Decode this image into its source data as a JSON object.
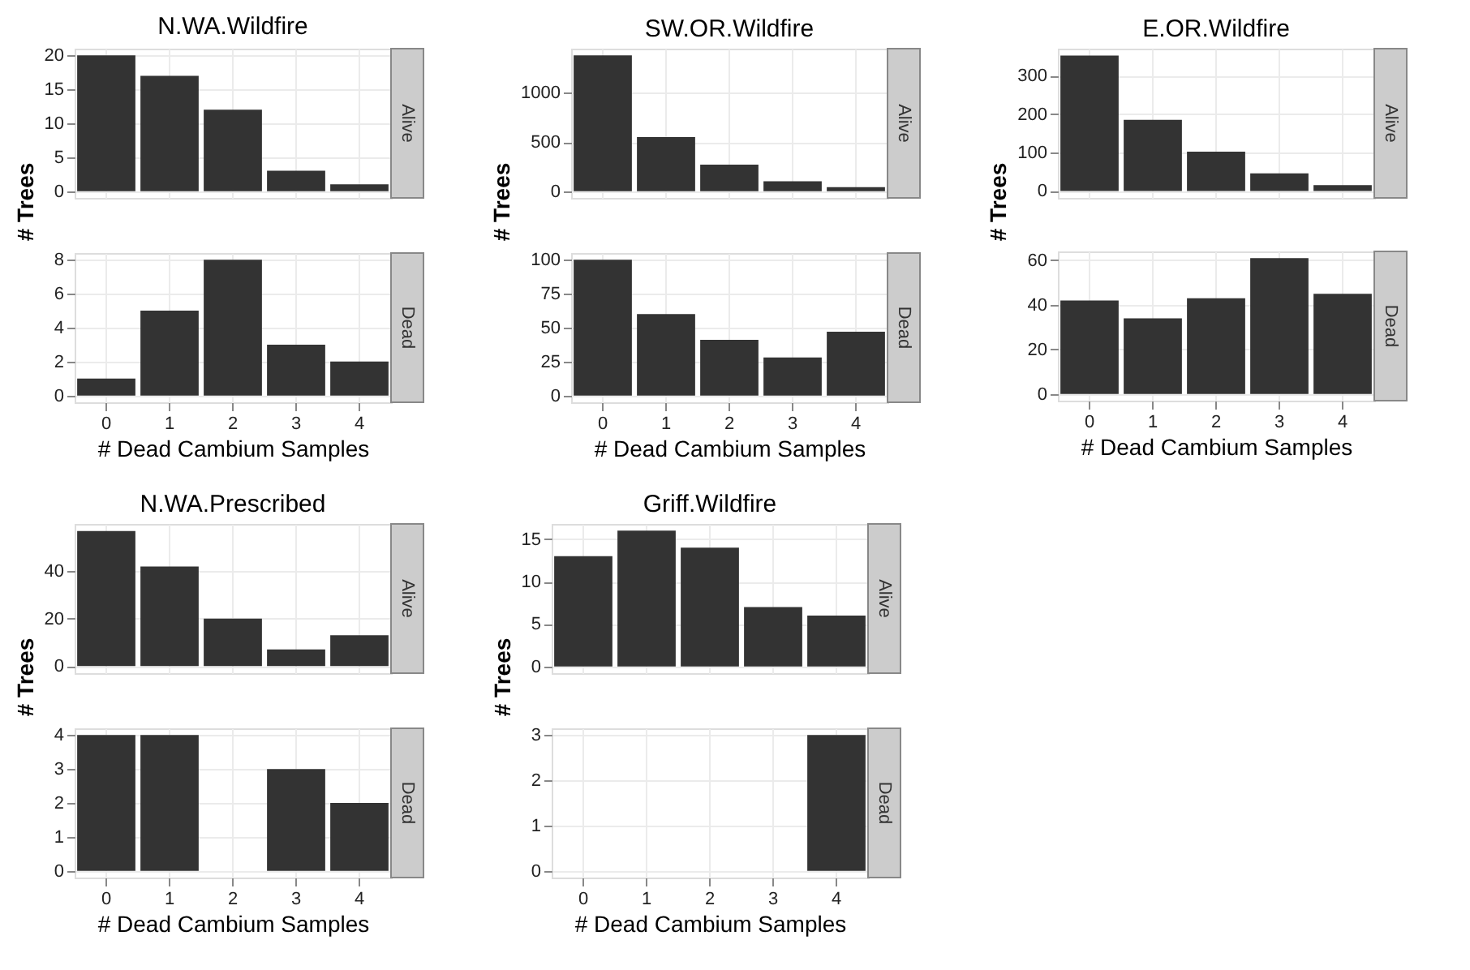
{
  "chart_data": [
    {
      "type": "bar",
      "title": "N.WA.Wildfire",
      "ylabel": "# Trees",
      "categories": [
        "0",
        "1",
        "2",
        "3",
        "4"
      ],
      "values": [
        20,
        17,
        12,
        3,
        1
      ],
      "color": "#333333",
      "ylim": [
        -1,
        21
      ],
      "yticks": [
        0,
        5,
        10,
        15,
        20
      ],
      "grid": true,
      "tick_labels": "y",
      "annotations": [
        "Alive"
      ]
    },
    {
      "type": "bar",
      "xlabel": "# Dead Cambium Samples",
      "categories": [
        "0",
        "1",
        "2",
        "3",
        "4"
      ],
      "values": [
        1,
        5,
        8,
        3,
        2
      ],
      "color": "#333333",
      "ylim": [
        -0.4,
        8.4
      ],
      "yticks": [
        0,
        2,
        4,
        6,
        8
      ],
      "grid": true,
      "annotations": [
        "Dead"
      ]
    },
    {
      "type": "bar",
      "title": "SW.OR.Wildfire",
      "ylabel": "# Trees",
      "categories": [
        "0",
        "1",
        "2",
        "3",
        "4"
      ],
      "values": [
        1380,
        550,
        270,
        100,
        40
      ],
      "color": "#333333",
      "ylim": [
        -69,
        1449
      ],
      "yticks": [
        0,
        500,
        1000
      ],
      "grid": true,
      "tick_labels": "y",
      "annotations": [
        "Alive"
      ]
    },
    {
      "type": "bar",
      "xlabel": "# Dead Cambium Samples",
      "categories": [
        "0",
        "1",
        "2",
        "3",
        "4"
      ],
      "values": [
        100,
        60,
        41,
        28,
        47
      ],
      "color": "#333333",
      "ylim": [
        -5,
        105
      ],
      "yticks": [
        0,
        25,
        50,
        75,
        100
      ],
      "grid": true,
      "annotations": [
        "Dead"
      ]
    },
    {
      "type": "bar",
      "title": "E.OR.Wildfire",
      "ylabel": "# Trees",
      "categories": [
        "0",
        "1",
        "2",
        "3",
        "4"
      ],
      "values": [
        352,
        185,
        102,
        46,
        15
      ],
      "color": "#333333",
      "ylim": [
        -18,
        370
      ],
      "yticks": [
        0,
        100,
        200,
        300
      ],
      "grid": true,
      "tick_labels": "y",
      "annotations": [
        "Alive"
      ]
    },
    {
      "type": "bar",
      "xlabel": "# Dead Cambium Samples",
      "categories": [
        "0",
        "1",
        "2",
        "3",
        "4"
      ],
      "values": [
        42,
        34,
        43,
        61,
        45
      ],
      "color": "#333333",
      "ylim": [
        -3,
        64
      ],
      "yticks": [
        0,
        20,
        40,
        60
      ],
      "grid": true,
      "annotations": [
        "Dead"
      ]
    },
    {
      "type": "bar",
      "title": "N.WA.Prescribed",
      "ylabel": "# Trees",
      "categories": [
        "0",
        "1",
        "2",
        "3",
        "4"
      ],
      "values": [
        57,
        42,
        20,
        7,
        13
      ],
      "color": "#333333",
      "ylim": [
        -3,
        60
      ],
      "yticks": [
        0,
        20,
        40
      ],
      "grid": true,
      "tick_labels": "y",
      "annotations": [
        "Alive"
      ]
    },
    {
      "type": "bar",
      "xlabel": "# Dead Cambium Samples",
      "categories": [
        "0",
        "1",
        "2",
        "3",
        "4"
      ],
      "values": [
        4,
        4,
        0,
        3,
        2
      ],
      "color": "#333333",
      "ylim": [
        -0.2,
        4.2
      ],
      "yticks": [
        0,
        1,
        2,
        3,
        4
      ],
      "grid": true,
      "annotations": [
        "Dead"
      ]
    },
    {
      "type": "bar",
      "title": "Griff.Wildfire",
      "ylabel": "# Trees",
      "categories": [
        "0",
        "1",
        "2",
        "3",
        "4"
      ],
      "values": [
        13,
        16,
        14,
        7,
        6
      ],
      "color": "#333333",
      "ylim": [
        -0.8,
        16.8
      ],
      "yticks": [
        0,
        5,
        10,
        15
      ],
      "grid": true,
      "tick_labels": "y",
      "annotations": [
        "Alive"
      ]
    },
    {
      "type": "bar",
      "xlabel": "# Dead Cambium Samples",
      "categories": [
        "0",
        "1",
        "2",
        "3",
        "4"
      ],
      "values": [
        0,
        0,
        0,
        0,
        3
      ],
      "color": "#333333",
      "ylim": [
        -0.15,
        3.15
      ],
      "yticks": [
        0,
        1,
        2,
        3
      ],
      "grid": true,
      "annotations": [
        "Dead"
      ]
    }
  ]
}
